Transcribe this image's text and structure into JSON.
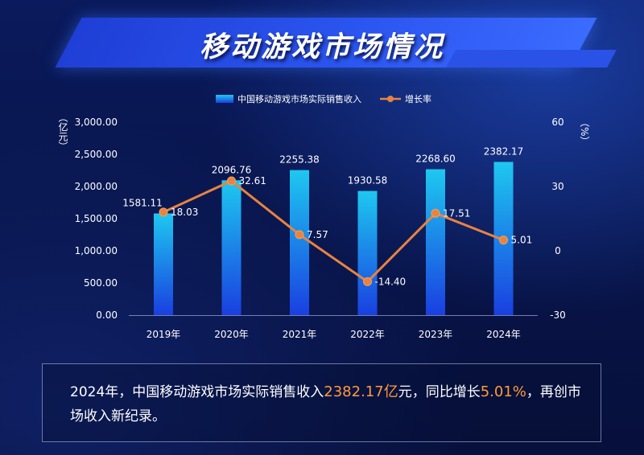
{
  "header": {
    "title": "移动游戏市场情况"
  },
  "chart_data": {
    "type": "bar",
    "categories": [
      "2019年",
      "2020年",
      "2021年",
      "2022年",
      "2023年",
      "2024年"
    ],
    "series": [
      {
        "name": "中国移动游戏市场实际销售收入",
        "type": "bar",
        "axis": "left",
        "values": [
          1581.11,
          2096.76,
          2255.38,
          1930.58,
          2268.6,
          2382.17
        ],
        "labels": [
          "1581.11",
          "2096.76",
          "2255.38",
          "1930.58",
          "2268.60",
          "2382.17"
        ]
      },
      {
        "name": "增长率",
        "type": "line",
        "axis": "right",
        "values": [
          18.03,
          32.61,
          7.57,
          -14.4,
          17.51,
          5.01
        ],
        "labels": [
          "18.03",
          "32.61",
          "7.57",
          "-14.40",
          "17.51",
          "5.01"
        ]
      }
    ],
    "left_axis": {
      "unit": "（亿元）",
      "ylim": [
        0,
        3000
      ],
      "ticks": [
        "0.00",
        "500.00",
        "1,000.00",
        "1,500.00",
        "2,000.00",
        "2,500.00",
        "3,000.00"
      ]
    },
    "right_axis": {
      "unit": "（%）",
      "ylim": [
        -30,
        60
      ],
      "ticks": [
        "-30",
        "0",
        "30",
        "60"
      ]
    },
    "legend_placement": "top-center",
    "grid": false,
    "colors": {
      "bar_top": "#1ec8f0",
      "bar_bottom": "#1a3fe0",
      "line": "#e8833f"
    }
  },
  "note": {
    "part1": "2024年，中国移动游戏市场实际销售收入",
    "highlight1": "2382.17亿",
    "part2": "元，同比增长",
    "highlight2": "5.01%",
    "part3": "，再创市场收入新纪录。"
  }
}
